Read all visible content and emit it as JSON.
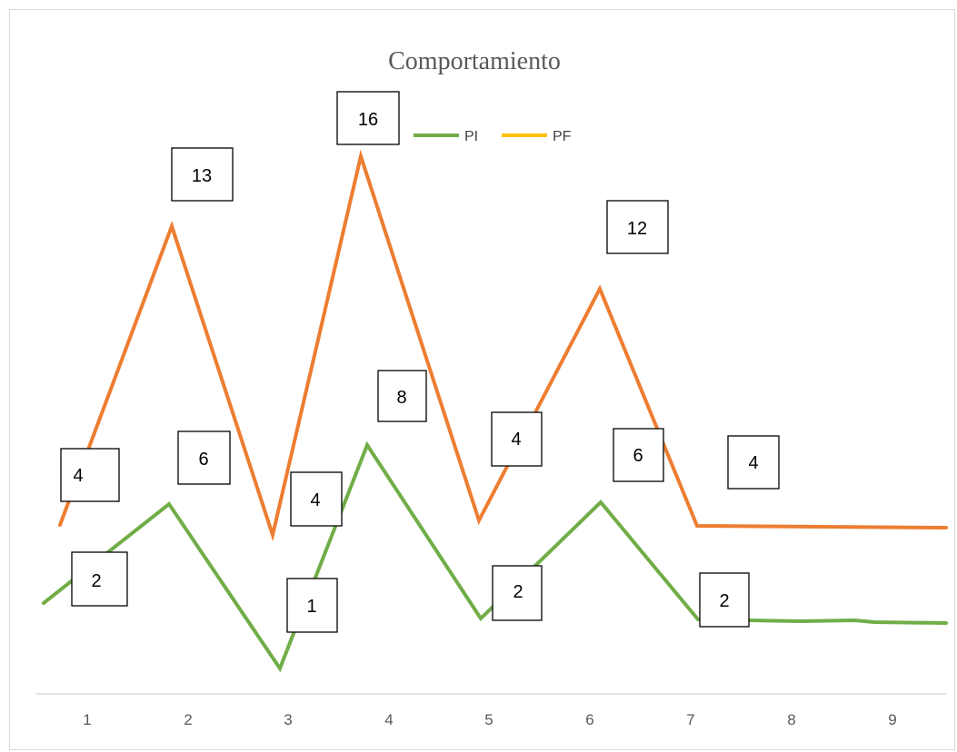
{
  "chart_data": {
    "type": "line",
    "title": "Comportamiento",
    "categories": [
      "1",
      "2",
      "3",
      "4",
      "5",
      "6",
      "7",
      "8",
      "9"
    ],
    "xlabel": "",
    "ylabel": "",
    "grid": false,
    "legend_position": "top",
    "series": [
      {
        "name": "PI",
        "color": "#70ad47",
        "values": [
          2,
          6,
          1,
          8,
          2,
          6,
          2,
          null,
          null
        ]
      },
      {
        "name": "PF",
        "color": "#ed7d31",
        "values": [
          4,
          13,
          4,
          16,
          4,
          12,
          4,
          null,
          null
        ]
      }
    ],
    "legend": [
      {
        "name": "PI",
        "color": "#70ad47"
      },
      {
        "name": "PF",
        "color": "#ffc000"
      }
    ],
    "data_labels": [
      "4",
      "13",
      "16",
      "12",
      "2",
      "6",
      "1",
      "4",
      "8",
      "4",
      "2",
      "6",
      "2",
      "4"
    ]
  }
}
